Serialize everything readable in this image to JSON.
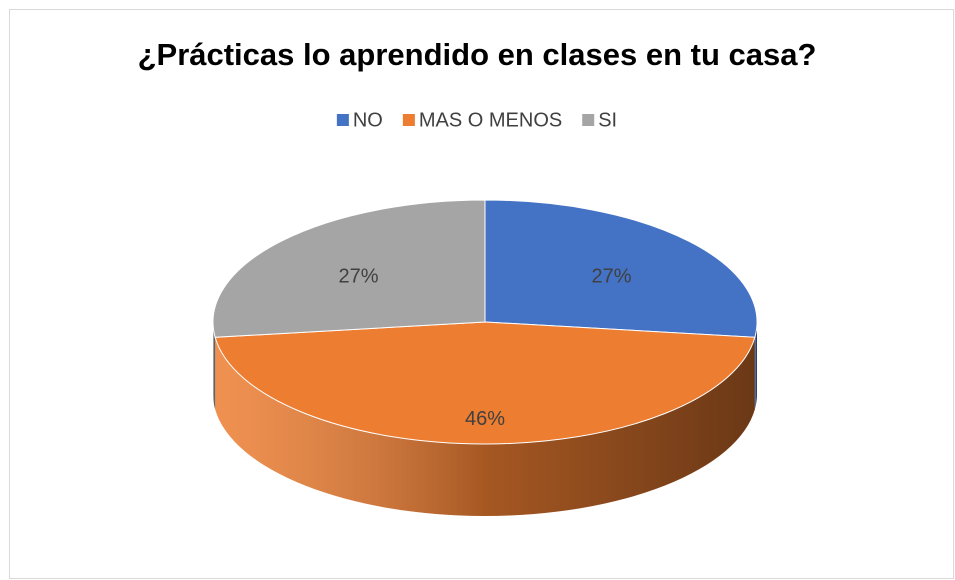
{
  "chart_data": {
    "type": "pie",
    "title": "¿Prácticas lo aprendido en clases en tu casa?",
    "categories": [
      "NO",
      "MAS O MENOS",
      "SI"
    ],
    "values": [
      27,
      46,
      27
    ],
    "value_labels": [
      "27%",
      "46%",
      "27%"
    ],
    "colors": [
      "#4472c4",
      "#ed7d31",
      "#a5a5a5"
    ],
    "legend": "top"
  }
}
